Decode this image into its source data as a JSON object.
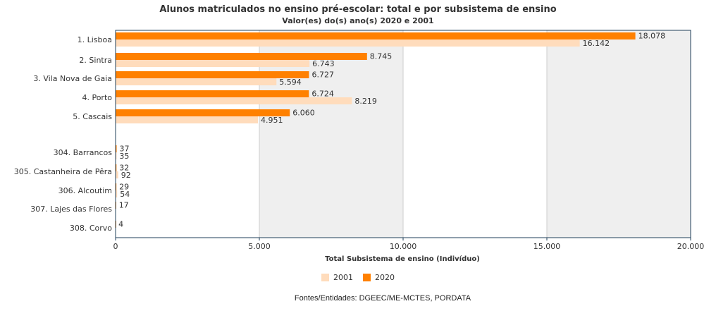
{
  "header": {
    "title": "Alunos matriculados no ensino pré-escolar: total e por subsistema de ensino",
    "subtitle": "Valor(es) do(s) ano(s) 2020 e 2001"
  },
  "colors": {
    "s2020": "#ff8000",
    "s2001": "#ffdcbc",
    "shade": "#efefef",
    "frame": "#1f3f5a"
  },
  "source": "Fontes/Entidades: DGEEC/ME-MCTES, PORDATA",
  "chart_data": {
    "type": "bar",
    "orientation": "horizontal",
    "title": "Alunos matriculados no ensino pré-escolar: total e por subsistema de ensino",
    "subtitle": "Valor(es) do(s) ano(s) 2020 e 2001",
    "xlabel": "Total Subsistema de ensino (Indivíduo)",
    "ylabel": "",
    "xlim": [
      0,
      20000
    ],
    "xticks": [
      0,
      5000,
      10000,
      15000,
      20000
    ],
    "xtick_labels": [
      "0",
      "5.000",
      "10.000",
      "15.000",
      "20.000"
    ],
    "categories": [
      "1. Lisboa",
      "2. Sintra",
      "3. Vila Nova de Gaia",
      "4. Porto",
      "5. Cascais",
      "304. Barrancos",
      "305. Castanheira de Pêra",
      "306. Alcoutim",
      "307. Lajes das Flores",
      "308. Corvo"
    ],
    "series": [
      {
        "name": "2020",
        "values": [
          18078,
          8745,
          6727,
          6724,
          6060,
          37,
          32,
          29,
          17,
          4
        ],
        "labels": [
          "18.078",
          "8.745",
          "6.727",
          "6.724",
          "6.060",
          "37",
          "32",
          "29",
          "17",
          "4"
        ]
      },
      {
        "name": "2001",
        "values": [
          16142,
          6743,
          5594,
          8219,
          4951,
          35,
          92,
          54,
          null,
          null
        ],
        "labels": [
          "16.142",
          "6.743",
          "5.594",
          "8.219",
          "4.951",
          "35",
          "92",
          "54",
          "",
          ""
        ]
      }
    ],
    "legend": [
      "2001",
      "2020"
    ],
    "legend_position": "bottom",
    "grid": true
  }
}
